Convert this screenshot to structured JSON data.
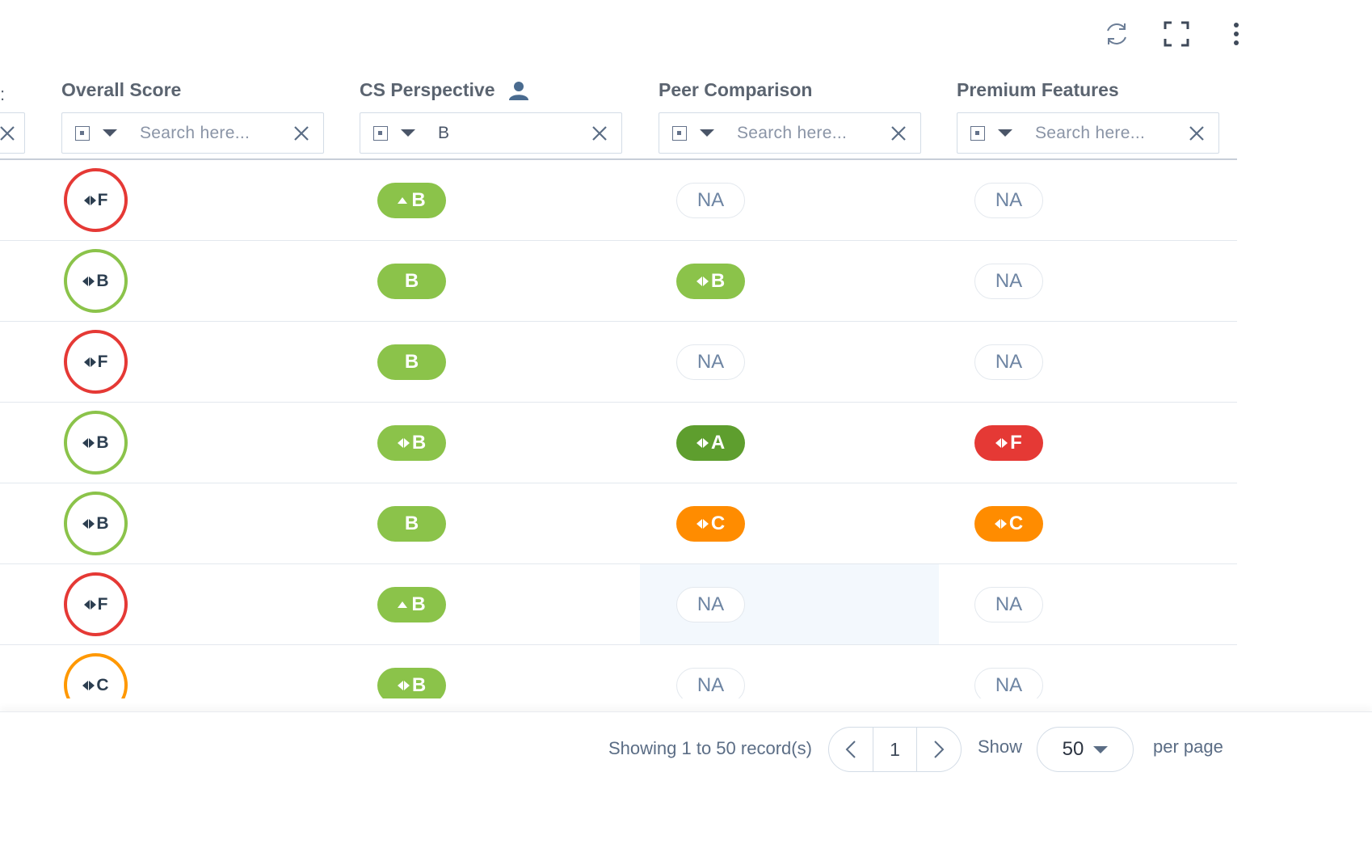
{
  "toolbar": {
    "refresh_icon": "refresh-icon",
    "fullscreen_icon": "fullscreen-icon",
    "more_icon": "more-vertical-icon"
  },
  "columns": [
    {
      "title": "Overall Score",
      "filter_value": "",
      "placeholder": "Search here..."
    },
    {
      "title": "CS Perspective",
      "icon": "person-icon",
      "filter_value": "B",
      "placeholder": "Search here..."
    },
    {
      "title": "Peer Comparison",
      "filter_value": "",
      "placeholder": "Search here..."
    },
    {
      "title": "Premium Features",
      "filter_value": "",
      "placeholder": "Search here..."
    }
  ],
  "left_partial_header": ":",
  "rows": [
    {
      "overall": "F",
      "overall_color": "#e53935",
      "cs": "B",
      "cs_trend": "up",
      "peer": "NA",
      "peer_trend": "",
      "premium": "NA",
      "premium_trend": ""
    },
    {
      "overall": "B",
      "overall_color": "#8bc34a",
      "cs": "B",
      "cs_trend": "",
      "peer": "B",
      "peer_trend": "flat",
      "premium": "NA",
      "premium_trend": ""
    },
    {
      "overall": "F",
      "overall_color": "#e53935",
      "cs": "B",
      "cs_trend": "",
      "peer": "NA",
      "peer_trend": "",
      "premium": "NA",
      "premium_trend": ""
    },
    {
      "overall": "B",
      "overall_color": "#8bc34a",
      "cs": "B",
      "cs_trend": "flat",
      "peer": "A",
      "peer_trend": "flat",
      "premium": "F",
      "premium_trend": "flat"
    },
    {
      "overall": "B",
      "overall_color": "#8bc34a",
      "cs": "B",
      "cs_trend": "",
      "peer": "C",
      "peer_trend": "flat",
      "premium": "C",
      "premium_trend": "flat"
    },
    {
      "overall": "F",
      "overall_color": "#e53935",
      "cs": "B",
      "cs_trend": "up",
      "peer": "NA",
      "peer_trend": "",
      "premium": "NA",
      "premium_trend": ""
    },
    {
      "overall": "C",
      "overall_color": "#ff9800",
      "cs": "B",
      "cs_trend": "flat",
      "peer": "NA",
      "peer_trend": "",
      "premium": "NA",
      "premium_trend": ""
    }
  ],
  "footer": {
    "showing": "Showing 1 to 50 record(s)",
    "page": "1",
    "show_label": "Show",
    "per_page_value": "50",
    "per_page_label": "per page"
  },
  "colors": {
    "grade_a": "#5e9e2e",
    "grade_b": "#8bc34a",
    "grade_c": "#ff8c00",
    "grade_f": "#e53935",
    "na_text": "#6e85a3"
  }
}
